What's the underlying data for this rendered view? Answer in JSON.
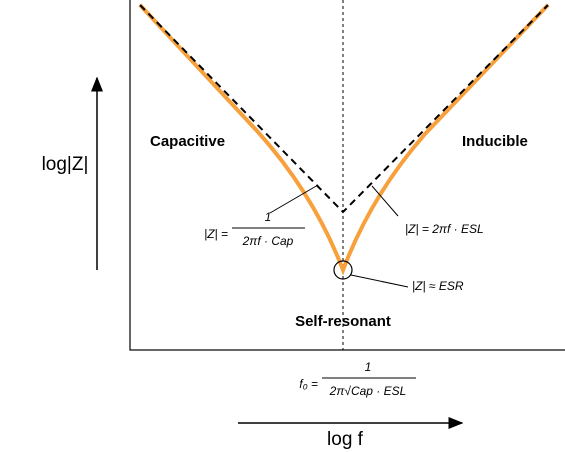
{
  "axes": {
    "y_label": "log|Z|",
    "x_label": "log f"
  },
  "regions": {
    "left": "Capacitive",
    "right": "Inducible",
    "bottom": "Self-resonant"
  },
  "formulas": {
    "capacitive": {
      "lhs": "|Z| =",
      "numerator": "1",
      "denominator": "2πf · Cap"
    },
    "inductive": {
      "text": "|Z| = 2πf · ESL"
    },
    "resonant": {
      "text": "|Z| ≈ ESR"
    },
    "frequency": {
      "lhs": "f₀ =",
      "numerator": "1",
      "denominator": "2π√Cap · ESL"
    }
  }
}
